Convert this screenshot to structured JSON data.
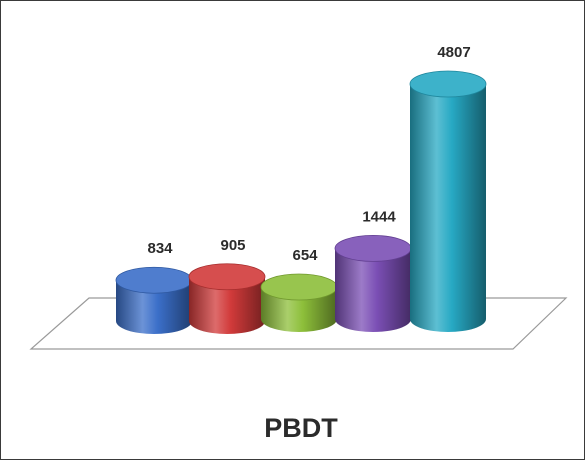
{
  "chart_data": {
    "type": "bar",
    "categories": [
      "",
      "",
      "",
      "",
      ""
    ],
    "values": [
      834,
      905,
      654,
      1444,
      4807
    ],
    "xlabel": "PBDT",
    "style": "3d-cylinder",
    "colors": [
      "#3b6fc9",
      "#d13a3a",
      "#8dbf3a",
      "#7b4fb5",
      "#27a9c4"
    ]
  }
}
